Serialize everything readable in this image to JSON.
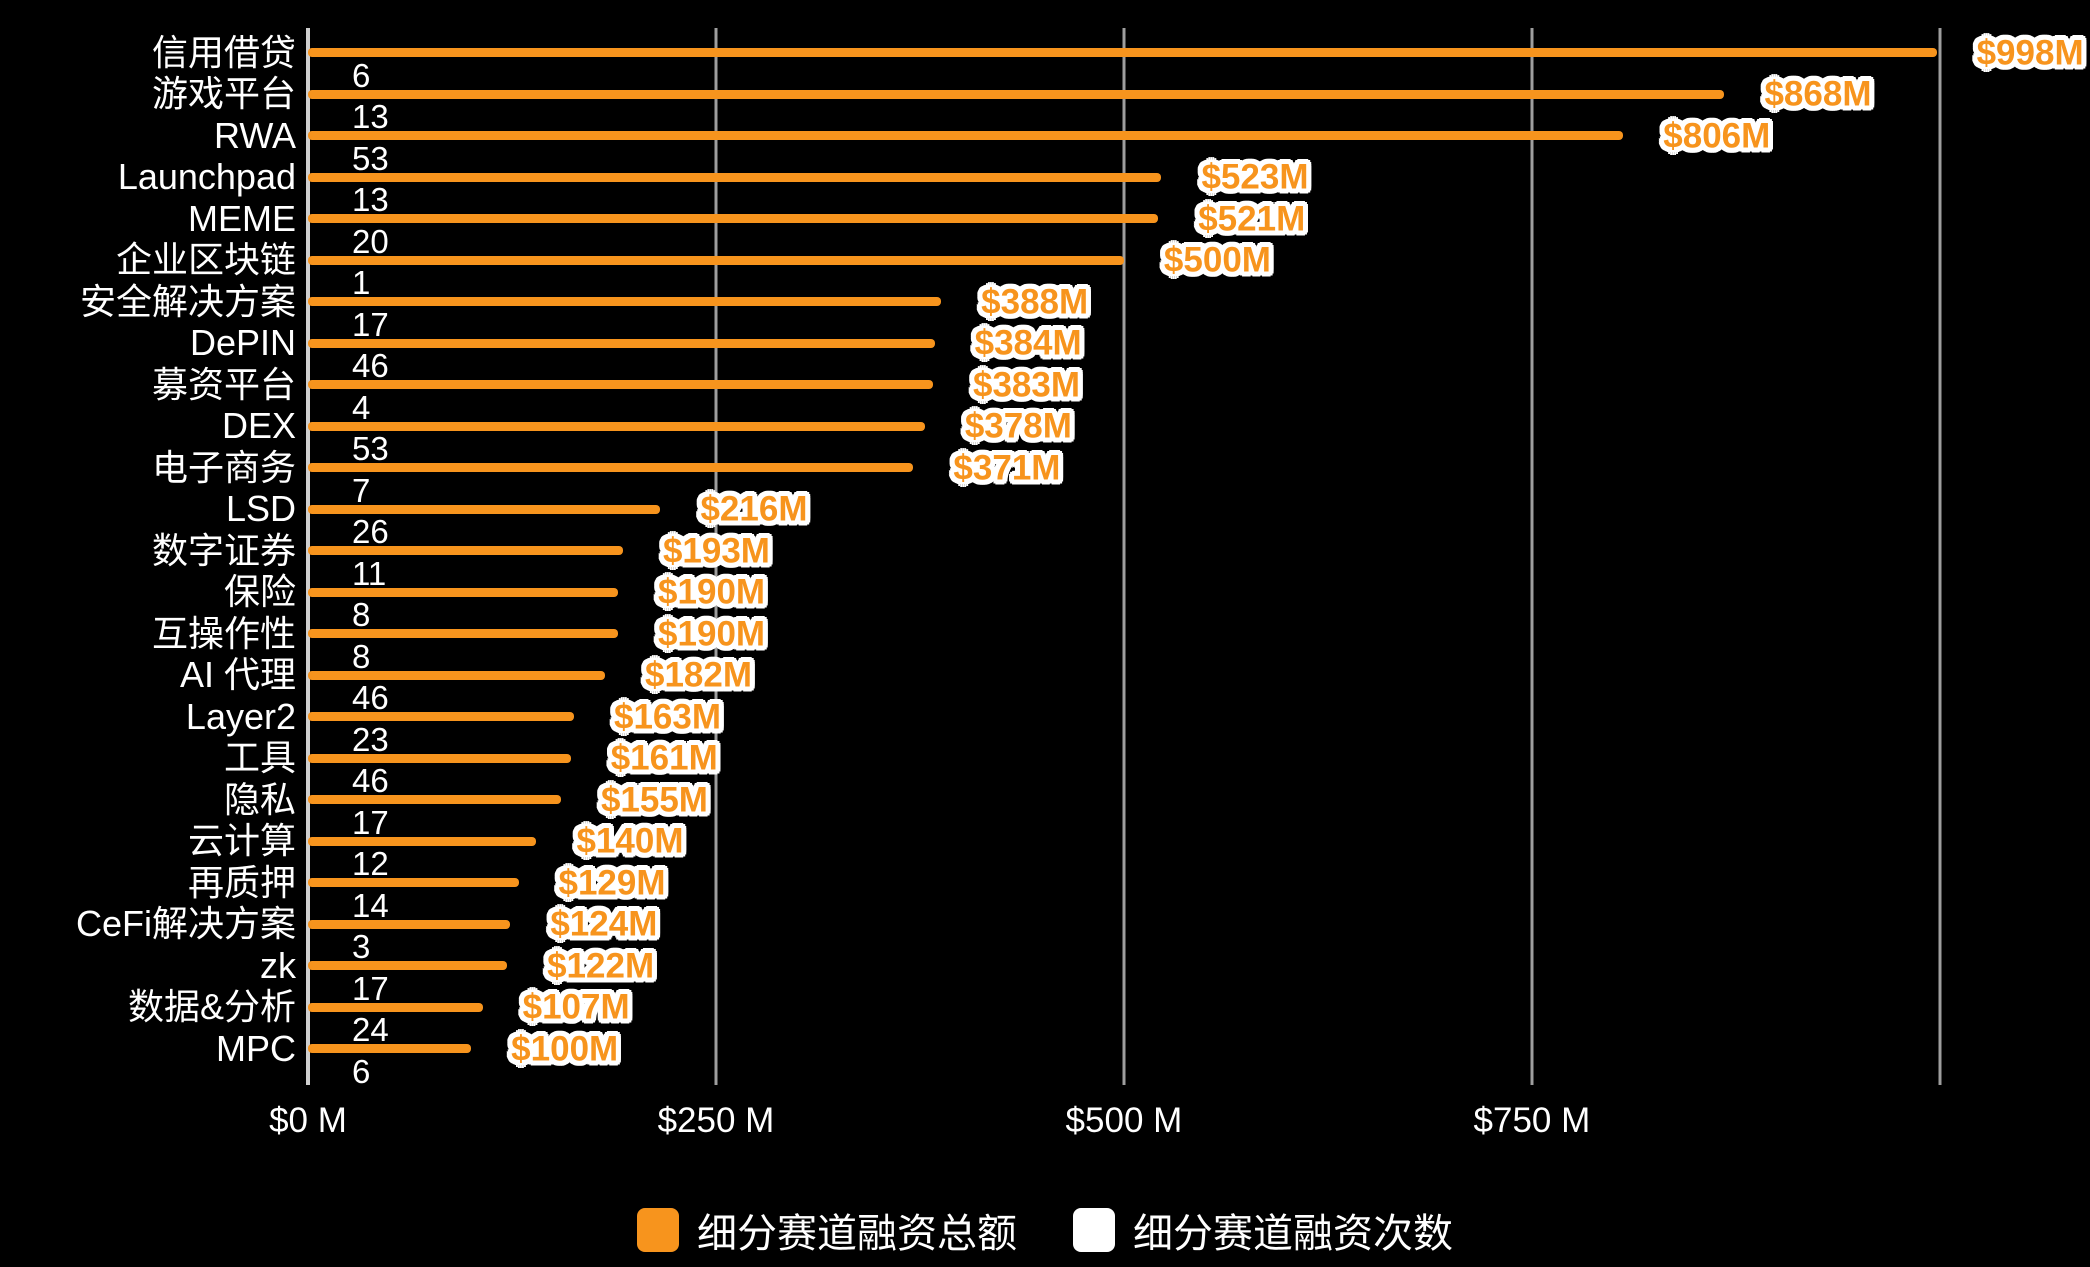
{
  "chart_data": {
    "type": "bar",
    "orientation": "horizontal",
    "categories": [
      "信用借贷",
      "游戏平台",
      "RWA",
      "Launchpad",
      "MEME",
      "企业区块链",
      "安全解决方案",
      "DePIN",
      "募资平台",
      "DEX",
      "电子商务",
      "LSD",
      "数字证券",
      "保险",
      "互操作性",
      "AI 代理",
      "Layer2",
      "工具",
      "隐私",
      "云计算",
      "再质押",
      "CeFi解决方案",
      "zk",
      "数据&分析",
      "MPC"
    ],
    "series": [
      {
        "name": "细分赛道融资总额",
        "unit": "$M",
        "values": [
          998,
          868,
          806,
          523,
          521,
          500,
          388,
          384,
          383,
          378,
          371,
          216,
          193,
          190,
          190,
          182,
          163,
          161,
          155,
          140,
          129,
          124,
          122,
          107,
          100
        ]
      },
      {
        "name": "细分赛道融资次数",
        "unit": "count",
        "values": [
          6,
          13,
          53,
          13,
          20,
          1,
          17,
          46,
          4,
          53,
          7,
          26,
          11,
          8,
          8,
          46,
          23,
          46,
          17,
          12,
          14,
          3,
          17,
          24,
          6
        ]
      }
    ],
    "value_labels": [
      "$998M",
      "$868M",
      "$806M",
      "$523M",
      "$521M",
      "$500M",
      "$388M",
      "$384M",
      "$383M",
      "$378M",
      "$371M",
      "$216M",
      "$193M",
      "$190M",
      "$190M",
      "$182M",
      "$163M",
      "$161M",
      "$155M",
      "$140M",
      "$129M",
      "$124M",
      "$122M",
      "$107M",
      "$100M"
    ],
    "count_labels": [
      "6",
      "13",
      "53",
      "13",
      "20",
      "1",
      "17",
      "46",
      "4",
      "53",
      "7",
      "26",
      "11",
      "8",
      "8",
      "46",
      "23",
      "46",
      "17",
      "12",
      "14",
      "3",
      "17",
      "24",
      "6"
    ],
    "x_axis": {
      "tick_labels": [
        "$0 M",
        "$250 M",
        "$500 M",
        "$750 M"
      ],
      "tick_values": [
        0,
        250,
        500,
        750
      ],
      "gridline_values": [
        0,
        250,
        500,
        750,
        1000
      ],
      "axis_max": 1092,
      "grid": true
    },
    "legend": {
      "position": "bottom",
      "entries": [
        {
          "label": "细分赛道融资总额",
          "color": "#F7941D"
        },
        {
          "label": "细分赛道融资次数",
          "color": "#FFFFFF"
        }
      ]
    },
    "colors": {
      "bar": "#F7941D",
      "text": "#FFFFFF",
      "gridline": "#9E9E9E",
      "axis_line": "#CFCFCF",
      "background": "#000000"
    }
  }
}
